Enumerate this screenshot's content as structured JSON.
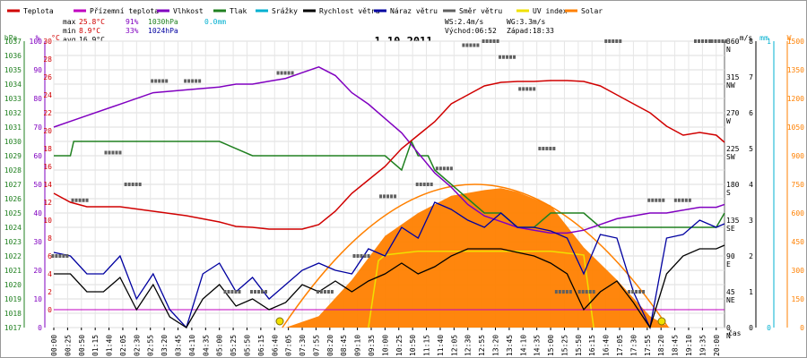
{
  "chart_data": {
    "type": "line",
    "title": "1.10.2011",
    "x_axis_label": "čas",
    "legend": [
      {
        "label": "Teplota",
        "color": "#d00000"
      },
      {
        "label": "Přízemní teplota",
        "color": "#c000c0"
      },
      {
        "label": "Vlhkost",
        "color": "#8000c0"
      },
      {
        "label": "Tlak",
        "color": "#208020"
      },
      {
        "label": "Srážky",
        "color": "#00b0d0"
      },
      {
        "label": "Rychlost větru",
        "color": "#000000"
      },
      {
        "label": "Náraz větru",
        "color": "#0000a0"
      },
      {
        "label": "Směr větru",
        "color": "#606060"
      },
      {
        "label": "UV index",
        "color": "#f0e000"
      },
      {
        "label": "Solar",
        "color": "#ff8000"
      }
    ],
    "stats": {
      "max": {
        "label": "max",
        "temp": "25.8°C",
        "hum": "91%",
        "press": "1030hPa",
        "rain": "0.0mm"
      },
      "min": {
        "label": "min",
        "temp": "8.9°C",
        "hum": "33%",
        "press": "1024hPa"
      },
      "avg": {
        "label": "avg",
        "temp": "16.9°C"
      }
    },
    "wind_info": {
      "ws": "WS:2.4m/s",
      "wg": "WG:3.3m/s",
      "sunrise": "Východ:06:52",
      "sunset": "Západ:18:33"
    },
    "x_ticks": [
      "00:00",
      "00:25",
      "00:50",
      "01:15",
      "01:40",
      "02:05",
      "02:30",
      "02:55",
      "03:20",
      "03:45",
      "04:10",
      "04:35",
      "05:00",
      "05:25",
      "05:50",
      "06:15",
      "06:40",
      "07:05",
      "07:30",
      "07:55",
      "08:20",
      "08:45",
      "09:10",
      "09:35",
      "10:00",
      "10:25",
      "10:50",
      "11:15",
      "11:40",
      "12:05",
      "12:30",
      "12:55",
      "13:20",
      "13:45",
      "14:10",
      "14:35",
      "15:00",
      "15:25",
      "15:50",
      "16:15",
      "16:40",
      "17:05",
      "17:30",
      "17:55",
      "18:20",
      "18:45",
      "19:10",
      "19:35",
      "20:00"
    ],
    "axes_left": {
      "hpa": {
        "title": "hPa",
        "min": 1017,
        "max": 1037,
        "color": "#208020",
        "ticks": [
          "1017",
          "1018",
          "1019",
          "1020",
          "1021",
          "1022",
          "1023",
          "1024",
          "1025",
          "1026",
          "1027",
          "1028",
          "1029",
          "1030",
          "1031",
          "1032",
          "1033",
          "1034",
          "1035",
          "1036",
          "1037"
        ]
      },
      "pct": {
        "title": "%",
        "min": 0,
        "max": 100,
        "color": "#8000c0",
        "ticks": [
          "0",
          "10",
          "20",
          "30",
          "40",
          "50",
          "60",
          "70",
          "80",
          "90",
          "100"
        ]
      },
      "degc": {
        "title": "°C",
        "min": -2,
        "max": 30,
        "color": "#d00000",
        "ticks": [
          "0",
          "2",
          "4",
          "6",
          "8",
          "10",
          "12",
          "14",
          "16",
          "18",
          "20",
          "22",
          "24",
          "26",
          "28",
          "30"
        ]
      }
    },
    "axes_right": {
      "dir": {
        "title": "",
        "ticks": [
          "0",
          "45",
          "90",
          "135",
          "180",
          "225",
          "270",
          "315",
          "360"
        ]
      },
      "compass": {
        "title": "",
        "ticks": [
          "N",
          "NE",
          "E",
          "SE",
          "S",
          "SW",
          "W",
          "NW",
          "N"
        ]
      },
      "ms": {
        "title": "m/s",
        "min": 0,
        "max": 8,
        "ticks": [
          "0",
          "1",
          "2",
          "3",
          "4",
          "5",
          "6",
          "7",
          "8"
        ]
      },
      "mm": {
        "title": "mm",
        "min": 0,
        "max": 1,
        "ticks": [
          "0",
          "1"
        ]
      },
      "w": {
        "title": "W",
        "min": 0,
        "max": 1500,
        "ticks": [
          "0",
          "150",
          "300",
          "450",
          "600",
          "750",
          "900",
          "1050",
          "1200",
          "1350",
          "1500"
        ]
      }
    },
    "series": [
      {
        "name": "Teplota",
        "unit": "°C",
        "color": "#d00000",
        "x": [
          0,
          0.5,
          1,
          2,
          3,
          4,
          5,
          5.5,
          6,
          6.5,
          7,
          7.5,
          8,
          8.5,
          9,
          9.5,
          10,
          10.5,
          11,
          11.5,
          12,
          12.5,
          13,
          13.5,
          14,
          14.5,
          15,
          15.5,
          16,
          16.5,
          17,
          17.5,
          18,
          18.5,
          19,
          19.5,
          20,
          20.25
        ],
        "y": [
          13,
          12,
          11.5,
          11.5,
          11,
          10.5,
          9.8,
          9.3,
          9.2,
          9.0,
          9.0,
          9.0,
          9.5,
          11,
          13,
          14.5,
          16,
          18,
          19.5,
          21,
          23,
          24,
          25,
          25.4,
          25.5,
          25.5,
          25.6,
          25.6,
          25.5,
          25,
          24,
          23,
          22,
          20.5,
          19.5,
          19.8,
          19.5,
          18.7
        ]
      },
      {
        "name": "Vlhkost",
        "unit": "%",
        "color": "#8000c0",
        "x": [
          0,
          0.5,
          1,
          2,
          3,
          4,
          5,
          5.5,
          6,
          6.5,
          7,
          7.5,
          8,
          8.5,
          9,
          9.5,
          10,
          10.5,
          11,
          11.5,
          12,
          12.5,
          13,
          13.5,
          14,
          14.5,
          15,
          15.5,
          16,
          16.5,
          17,
          17.5,
          18,
          18.5,
          19,
          19.5,
          20,
          20.25
        ],
        "y": [
          70,
          72,
          74,
          78,
          82,
          83,
          84,
          85,
          85,
          86,
          87,
          89,
          91,
          88,
          82,
          78,
          73,
          68,
          61,
          54,
          49,
          43,
          39,
          37,
          35,
          34,
          33,
          33,
          34,
          36,
          38,
          39,
          40,
          40,
          41,
          42,
          42,
          43
        ]
      },
      {
        "name": "Tlak",
        "unit": "hPa",
        "color": "#208020",
        "x": [
          0,
          0.5,
          0.6,
          1,
          2,
          3,
          4,
          5,
          6,
          7,
          8,
          9,
          9.5,
          10,
          10.5,
          10.8,
          11,
          11.3,
          11.5,
          12,
          12.5,
          13,
          13.5,
          14,
          14.5,
          15,
          15.5,
          16,
          16.5,
          17,
          17.5,
          18,
          18.5,
          19,
          19.5,
          20,
          20.25
        ],
        "y": [
          1029,
          1029,
          1030,
          1030,
          1030,
          1030,
          1030,
          1030,
          1029,
          1029,
          1029,
          1029,
          1029,
          1029,
          1028,
          1030,
          1029,
          1029,
          1028,
          1027,
          1026,
          1025,
          1025,
          1024,
          1024,
          1025,
          1025,
          1025,
          1024,
          1024,
          1024,
          1024,
          1024,
          1024,
          1024,
          1024,
          1025
        ]
      },
      {
        "name": "Rychlost větru",
        "unit": "m/s",
        "color": "#000000",
        "x": [
          0,
          0.5,
          1,
          1.5,
          2,
          2.5,
          3,
          3.5,
          4,
          4.5,
          5,
          5.5,
          6,
          6.5,
          7,
          7.5,
          8,
          8.5,
          9,
          9.5,
          10,
          10.5,
          11,
          11.5,
          12,
          12.5,
          13,
          13.5,
          14,
          14.5,
          15,
          15.5,
          16,
          16.5,
          17,
          17.5,
          18,
          18.5,
          19,
          19.5,
          20,
          20.25
        ],
        "y": [
          1.5,
          1.5,
          1.0,
          1.0,
          1.4,
          0.5,
          1.2,
          0.3,
          0.0,
          0.8,
          1.2,
          0.6,
          0.8,
          0.5,
          0.7,
          1.2,
          1.0,
          1.3,
          1.0,
          1.3,
          1.5,
          1.8,
          1.5,
          1.7,
          2.0,
          2.2,
          2.2,
          2.2,
          2.1,
          2.0,
          1.8,
          1.5,
          0.5,
          1.0,
          1.3,
          0.7,
          0.0,
          1.5,
          2.0,
          2.2,
          2.2,
          2.3
        ]
      },
      {
        "name": "Náraz větru",
        "unit": "m/s",
        "color": "#0000a0",
        "x": [
          0,
          0.5,
          1,
          1.5,
          2,
          2.5,
          3,
          3.5,
          4,
          4.5,
          5,
          5.5,
          6,
          6.5,
          7,
          7.5,
          8,
          8.5,
          9,
          9.5,
          10,
          10.5,
          11,
          11.5,
          12,
          12.5,
          13,
          13.5,
          14,
          14.5,
          15,
          15.5,
          16,
          16.5,
          17,
          17.5,
          18,
          18.5,
          19,
          19.5,
          20,
          20.25
        ],
        "y": [
          2.1,
          2.0,
          1.5,
          1.5,
          2.0,
          0.8,
          1.5,
          0.5,
          0.0,
          1.5,
          1.8,
          1.0,
          1.4,
          0.8,
          1.2,
          1.6,
          1.8,
          1.6,
          1.5,
          2.2,
          2.0,
          2.8,
          2.5,
          3.5,
          3.3,
          3.0,
          2.8,
          3.2,
          2.8,
          2.8,
          2.7,
          2.5,
          1.5,
          2.6,
          2.5,
          1.0,
          0.0,
          2.5,
          2.6,
          3.0,
          2.8,
          2.9
        ]
      },
      {
        "name": "Solar",
        "unit": "W",
        "color": "#ff8000",
        "x": [
          7,
          8,
          9,
          10,
          11,
          12,
          13,
          13.5,
          14,
          15,
          16,
          17,
          18,
          18.6
        ],
        "y": [
          0,
          60,
          250,
          480,
          600,
          690,
          720,
          730,
          710,
          640,
          420,
          250,
          60,
          0
        ]
      },
      {
        "name": "UV index",
        "unit": "W",
        "color": "#f0e000",
        "x": [
          9.5,
          9.8,
          10,
          11,
          12,
          13,
          14,
          15,
          16,
          16.3
        ],
        "y": [
          0,
          350,
          380,
          400,
          400,
          400,
          400,
          400,
          380,
          0
        ]
      },
      {
        "name": "Směr větru",
        "unit": "°",
        "color": "#606060",
        "x": [
          0.2,
          0.8,
          1.8,
          2.4,
          3.2,
          4.2,
          5.4,
          6.2,
          7.0,
          8.2,
          9.3,
          10.1,
          11.2,
          11.8,
          12.6,
          13.2,
          13.7,
          14.3,
          14.9,
          15.4,
          16.1,
          16.9,
          17.6,
          18.2,
          19.0,
          19.6,
          20.1
        ],
        "y": [
          90,
          160,
          220,
          180,
          310,
          310,
          45,
          45,
          320,
          45,
          90,
          165,
          180,
          200,
          355,
          360,
          340,
          300,
          225,
          45,
          45,
          360,
          45,
          160,
          160,
          360,
          360
        ]
      },
      {
        "name": "Přízemní teplota",
        "unit": "°C",
        "color": "#c000c0",
        "x": [
          0,
          20.25
        ],
        "y": [
          0,
          0
        ]
      }
    ]
  }
}
